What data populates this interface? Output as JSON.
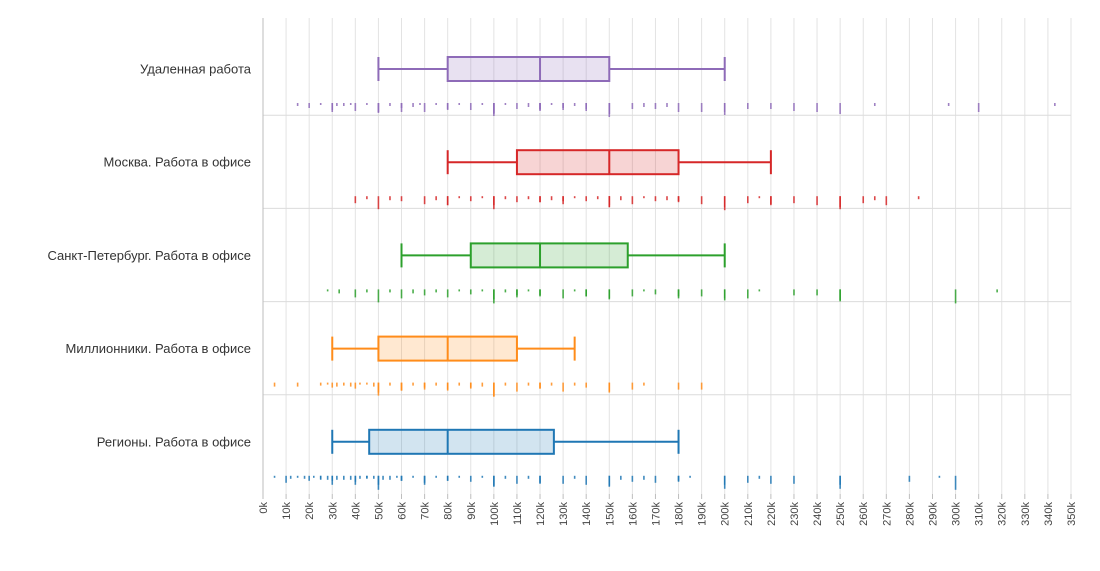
{
  "chart_data": {
    "type": "box",
    "xlabel": "",
    "ylabel": "",
    "xlim": [
      0,
      350000
    ],
    "x_ticks": [
      0,
      10000,
      20000,
      30000,
      40000,
      50000,
      60000,
      70000,
      80000,
      90000,
      100000,
      110000,
      120000,
      130000,
      140000,
      150000,
      160000,
      170000,
      180000,
      190000,
      200000,
      210000,
      220000,
      230000,
      240000,
      250000,
      260000,
      270000,
      280000,
      290000,
      300000,
      310000,
      320000,
      330000,
      340000,
      350000
    ],
    "x_tick_labels": [
      "0k",
      "10k",
      "20k",
      "30k",
      "40k",
      "50k",
      "60k",
      "70k",
      "80k",
      "90k",
      "100k",
      "110k",
      "120k",
      "130k",
      "140k",
      "150k",
      "160k",
      "170k",
      "180k",
      "190k",
      "200k",
      "210k",
      "220k",
      "230k",
      "240k",
      "250k",
      "260k",
      "270k",
      "280k",
      "290k",
      "300k",
      "310k",
      "320k",
      "330k",
      "340k",
      "350k"
    ],
    "grid": true,
    "series": [
      {
        "category": "Удаленная работа",
        "color": "#8e6bb8",
        "whisker_low": 50000,
        "q1": 80000,
        "median": 120000,
        "q3": 150000,
        "whisker_high": 200000,
        "points": [
          15000,
          20000,
          25000,
          30000,
          30000,
          32000,
          35000,
          38000,
          40000,
          45000,
          50000,
          50000,
          55000,
          60000,
          60000,
          65000,
          68000,
          70000,
          75000,
          80000,
          80000,
          85000,
          90000,
          95000,
          100000,
          100000,
          100000,
          105000,
          110000,
          115000,
          120000,
          120000,
          120000,
          125000,
          130000,
          130000,
          135000,
          140000,
          140000,
          150000,
          150000,
          150000,
          160000,
          165000,
          170000,
          175000,
          180000,
          190000,
          200000,
          200000,
          210000,
          220000,
          230000,
          240000,
          250000,
          265000,
          297000,
          310000,
          343000
        ]
      },
      {
        "category": "Москва. Работа в офисе",
        "color": "#d62728",
        "whisker_low": 80000,
        "q1": 110000,
        "median": 150000,
        "q3": 180000,
        "whisker_high": 220000,
        "points": [
          40000,
          45000,
          50000,
          55000,
          60000,
          70000,
          75000,
          80000,
          80000,
          85000,
          90000,
          95000,
          100000,
          100000,
          105000,
          110000,
          115000,
          120000,
          120000,
          125000,
          130000,
          130000,
          135000,
          140000,
          145000,
          150000,
          150000,
          150000,
          155000,
          160000,
          165000,
          170000,
          175000,
          180000,
          180000,
          190000,
          200000,
          200000,
          210000,
          215000,
          220000,
          220000,
          230000,
          240000,
          250000,
          250000,
          260000,
          265000,
          270000,
          284000
        ]
      },
      {
        "category": "Санкт-Петербург. Работа в офисе",
        "color": "#2ca02c",
        "whisker_low": 60000,
        "q1": 90000,
        "median": 120000,
        "q3": 158000,
        "whisker_high": 200000,
        "points": [
          28000,
          33000,
          40000,
          45000,
          50000,
          55000,
          60000,
          65000,
          70000,
          75000,
          80000,
          85000,
          90000,
          95000,
          100000,
          100000,
          105000,
          110000,
          110000,
          115000,
          120000,
          120000,
          130000,
          135000,
          140000,
          140000,
          150000,
          150000,
          160000,
          165000,
          170000,
          180000,
          180000,
          190000,
          200000,
          200000,
          210000,
          215000,
          230000,
          240000,
          250000,
          250000,
          300000,
          318000
        ]
      },
      {
        "category": "Миллионники. Работа в офисе",
        "color": "#ff8c1a",
        "whisker_low": 30000,
        "q1": 50000,
        "median": 80000,
        "q3": 110000,
        "whisker_high": 135000,
        "points": [
          5000,
          15000,
          25000,
          28000,
          30000,
          32000,
          35000,
          38000,
          40000,
          42000,
          45000,
          48000,
          50000,
          50000,
          55000,
          60000,
          60000,
          65000,
          70000,
          70000,
          75000,
          80000,
          80000,
          85000,
          90000,
          90000,
          95000,
          100000,
          100000,
          105000,
          110000,
          115000,
          120000,
          120000,
          125000,
          130000,
          135000,
          140000,
          150000,
          150000,
          160000,
          165000,
          180000,
          190000
        ]
      },
      {
        "category": "Регионы. Работа в офисе",
        "color": "#1f77b4",
        "whisker_low": 30000,
        "q1": 46000,
        "median": 80000,
        "q3": 126000,
        "whisker_high": 180000,
        "points": [
          5000,
          10000,
          12000,
          15000,
          18000,
          20000,
          22000,
          25000,
          25000,
          28000,
          30000,
          30000,
          32000,
          35000,
          38000,
          40000,
          40000,
          42000,
          45000,
          45000,
          48000,
          50000,
          50000,
          52000,
          55000,
          58000,
          60000,
          60000,
          65000,
          70000,
          70000,
          75000,
          80000,
          80000,
          85000,
          90000,
          95000,
          100000,
          100000,
          105000,
          110000,
          115000,
          120000,
          120000,
          130000,
          135000,
          140000,
          150000,
          150000,
          155000,
          160000,
          165000,
          170000,
          180000,
          180000,
          185000,
          200000,
          200000,
          210000,
          215000,
          220000,
          230000,
          250000,
          250000,
          280000,
          293000,
          300000
        ]
      }
    ]
  }
}
